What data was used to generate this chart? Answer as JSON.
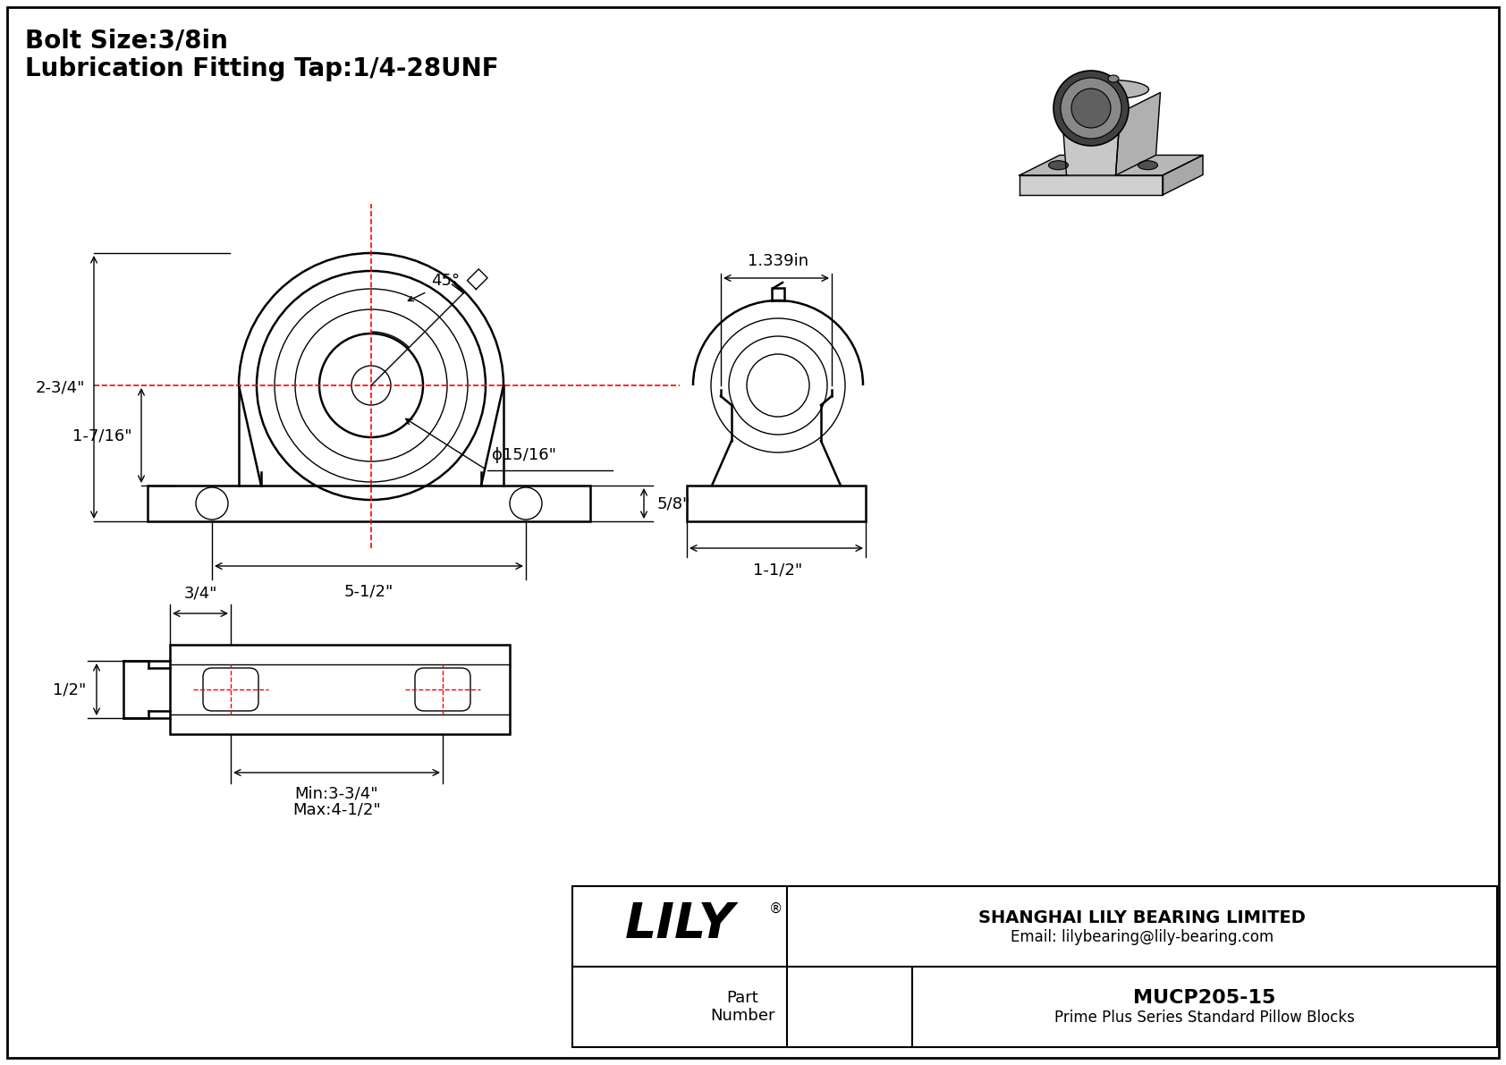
{
  "bg_color": "#ffffff",
  "line_color": "#000000",
  "red_line_color": "#ff0000",
  "title_text1": "Bolt Size:3/8in",
  "title_text2": "Lubrication Fitting Tap:1/4-28UNF",
  "company": "SHANGHAI LILY BEARING LIMITED",
  "email": "Email: lilybearing@lily-bearing.com",
  "part_label": "Part\nNumber",
  "part_number": "MUCP205-15",
  "part_desc": "Prime Plus Series Standard Pillow Blocks",
  "lily_logo": "LILY",
  "dim_45": "45°",
  "dim_2_3_4": "2-3/4\"",
  "dim_1_7_16": "1-7/16\"",
  "dim_5_8": "5/8\"",
  "dim_dia_15_16": "ϕ15/16\"",
  "dim_5_1_2": "5-1/2\"",
  "dim_1_339": "1.339in",
  "dim_1_1_2_side": "1-1/2\"",
  "dim_1_2": "1/2\"",
  "dim_3_4": "3/4\"",
  "dim_min": "Min:3-3/4\"",
  "dim_max": "Max:4-1/2\""
}
